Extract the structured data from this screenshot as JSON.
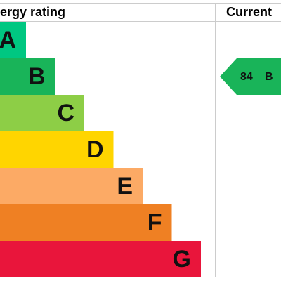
{
  "header": {
    "title": "ergy rating",
    "current": "Current"
  },
  "bands": [
    {
      "letter": "A",
      "color": "#00c781"
    },
    {
      "letter": "B",
      "color": "#19b459"
    },
    {
      "letter": "C",
      "color": "#8dce46"
    },
    {
      "letter": "D",
      "color": "#ffd500"
    },
    {
      "letter": "E",
      "color": "#fcaa65"
    },
    {
      "letter": "F",
      "color": "#ef8023"
    },
    {
      "letter": "G",
      "color": "#e9153b"
    }
  ],
  "current": {
    "value": 84,
    "letter": "B",
    "color": "#19b459"
  }
}
